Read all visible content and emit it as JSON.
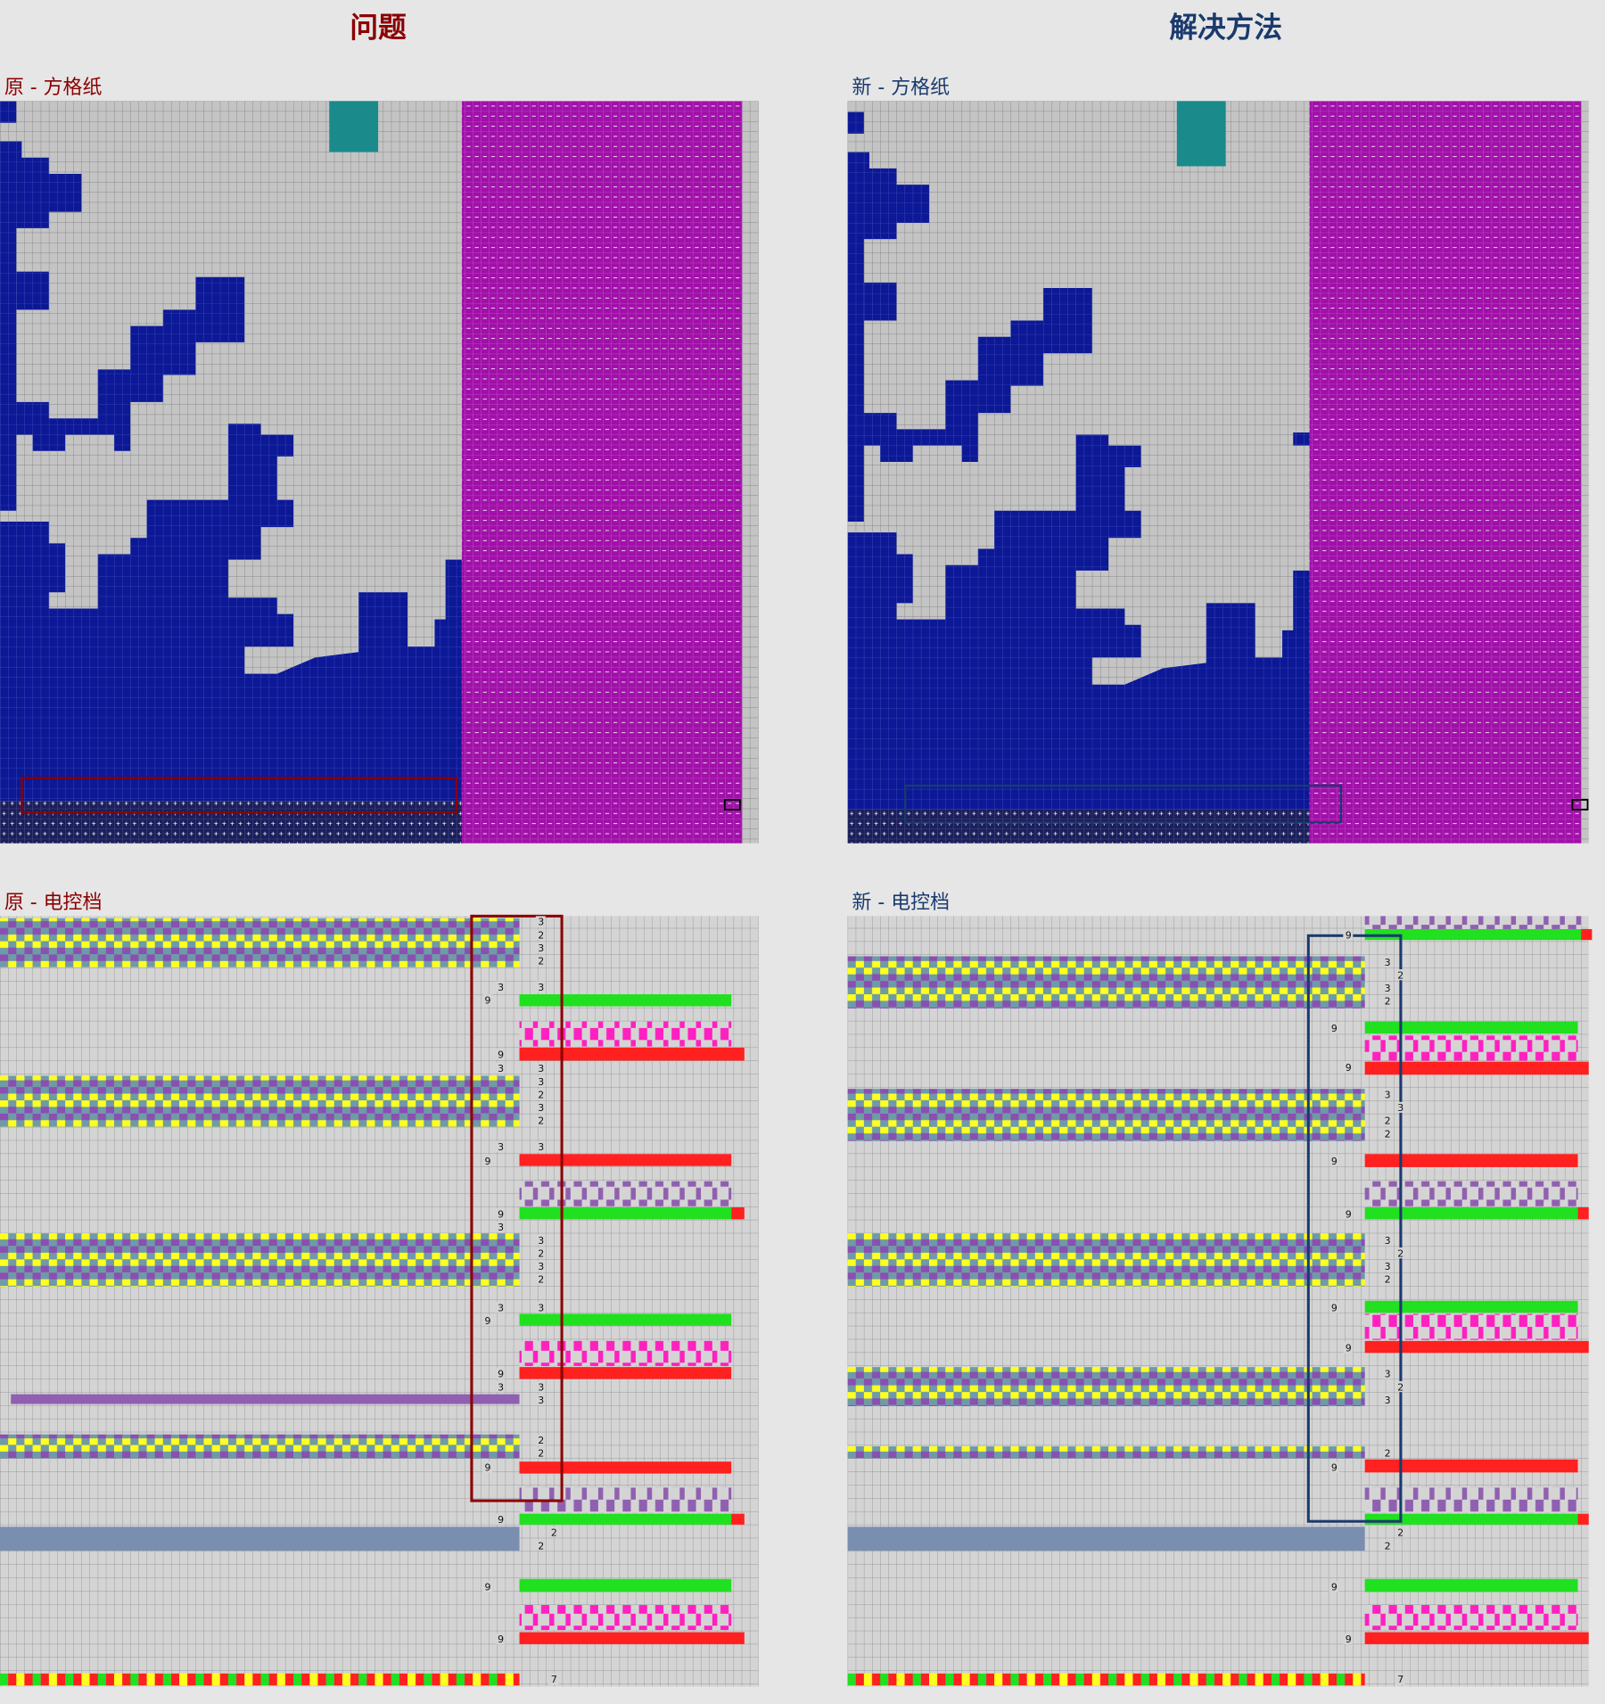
{
  "header": {
    "problem_title": "问题",
    "solution_title": "解决方法"
  },
  "panels": [
    {
      "grid_title": "原 - 方格纸",
      "control_title": "原 - 电控档",
      "row_labels": [
        3,
        2,
        3,
        2,
        3,
        3,
        9,
        9,
        3,
        3,
        3,
        2,
        3,
        2,
        3,
        3,
        9,
        9,
        3,
        3,
        2,
        3,
        2,
        3,
        3,
        9,
        9,
        3,
        3,
        3,
        2,
        2,
        9,
        9,
        2,
        2,
        9,
        9,
        7
      ]
    },
    {
      "grid_title": "新 - 方格纸",
      "control_title": "新 - 电控档",
      "row_labels": [
        9,
        3,
        2,
        3,
        2,
        9,
        9,
        3,
        3,
        2,
        2,
        9,
        9,
        3,
        2,
        3,
        2,
        9,
        9,
        3,
        2,
        3,
        2,
        9,
        2,
        2,
        9,
        9,
        7
      ]
    }
  ]
}
